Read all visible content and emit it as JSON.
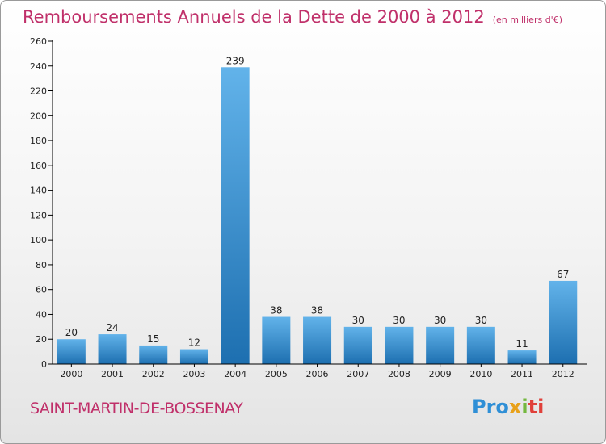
{
  "header": {
    "title": "Remboursements Annuels de la Dette de 2000 à 2012",
    "subtitle": "(en milliers d'€)"
  },
  "footer": {
    "commune": "SAINT-MARTIN-DE-BOSSENAY",
    "logo_letters": [
      "Pro",
      "x",
      "i",
      "ti"
    ]
  },
  "colors": {
    "title": "#c0306a",
    "bar_top": "#62b3ea",
    "bar_bottom": "#1d6fb0",
    "axis": "#000000"
  },
  "chart_data": {
    "type": "bar",
    "categories": [
      "2000",
      "2001",
      "2002",
      "2003",
      "2004",
      "2005",
      "2006",
      "2007",
      "2008",
      "2009",
      "2010",
      "2011",
      "2012"
    ],
    "values": [
      20,
      24,
      15,
      12,
      239,
      38,
      38,
      30,
      30,
      30,
      30,
      11,
      67
    ],
    "yticks": [
      0,
      20,
      40,
      60,
      80,
      100,
      120,
      140,
      160,
      180,
      200,
      220,
      240,
      260
    ],
    "ylim": [
      0,
      260
    ],
    "grid": false,
    "data_labels": true
  }
}
